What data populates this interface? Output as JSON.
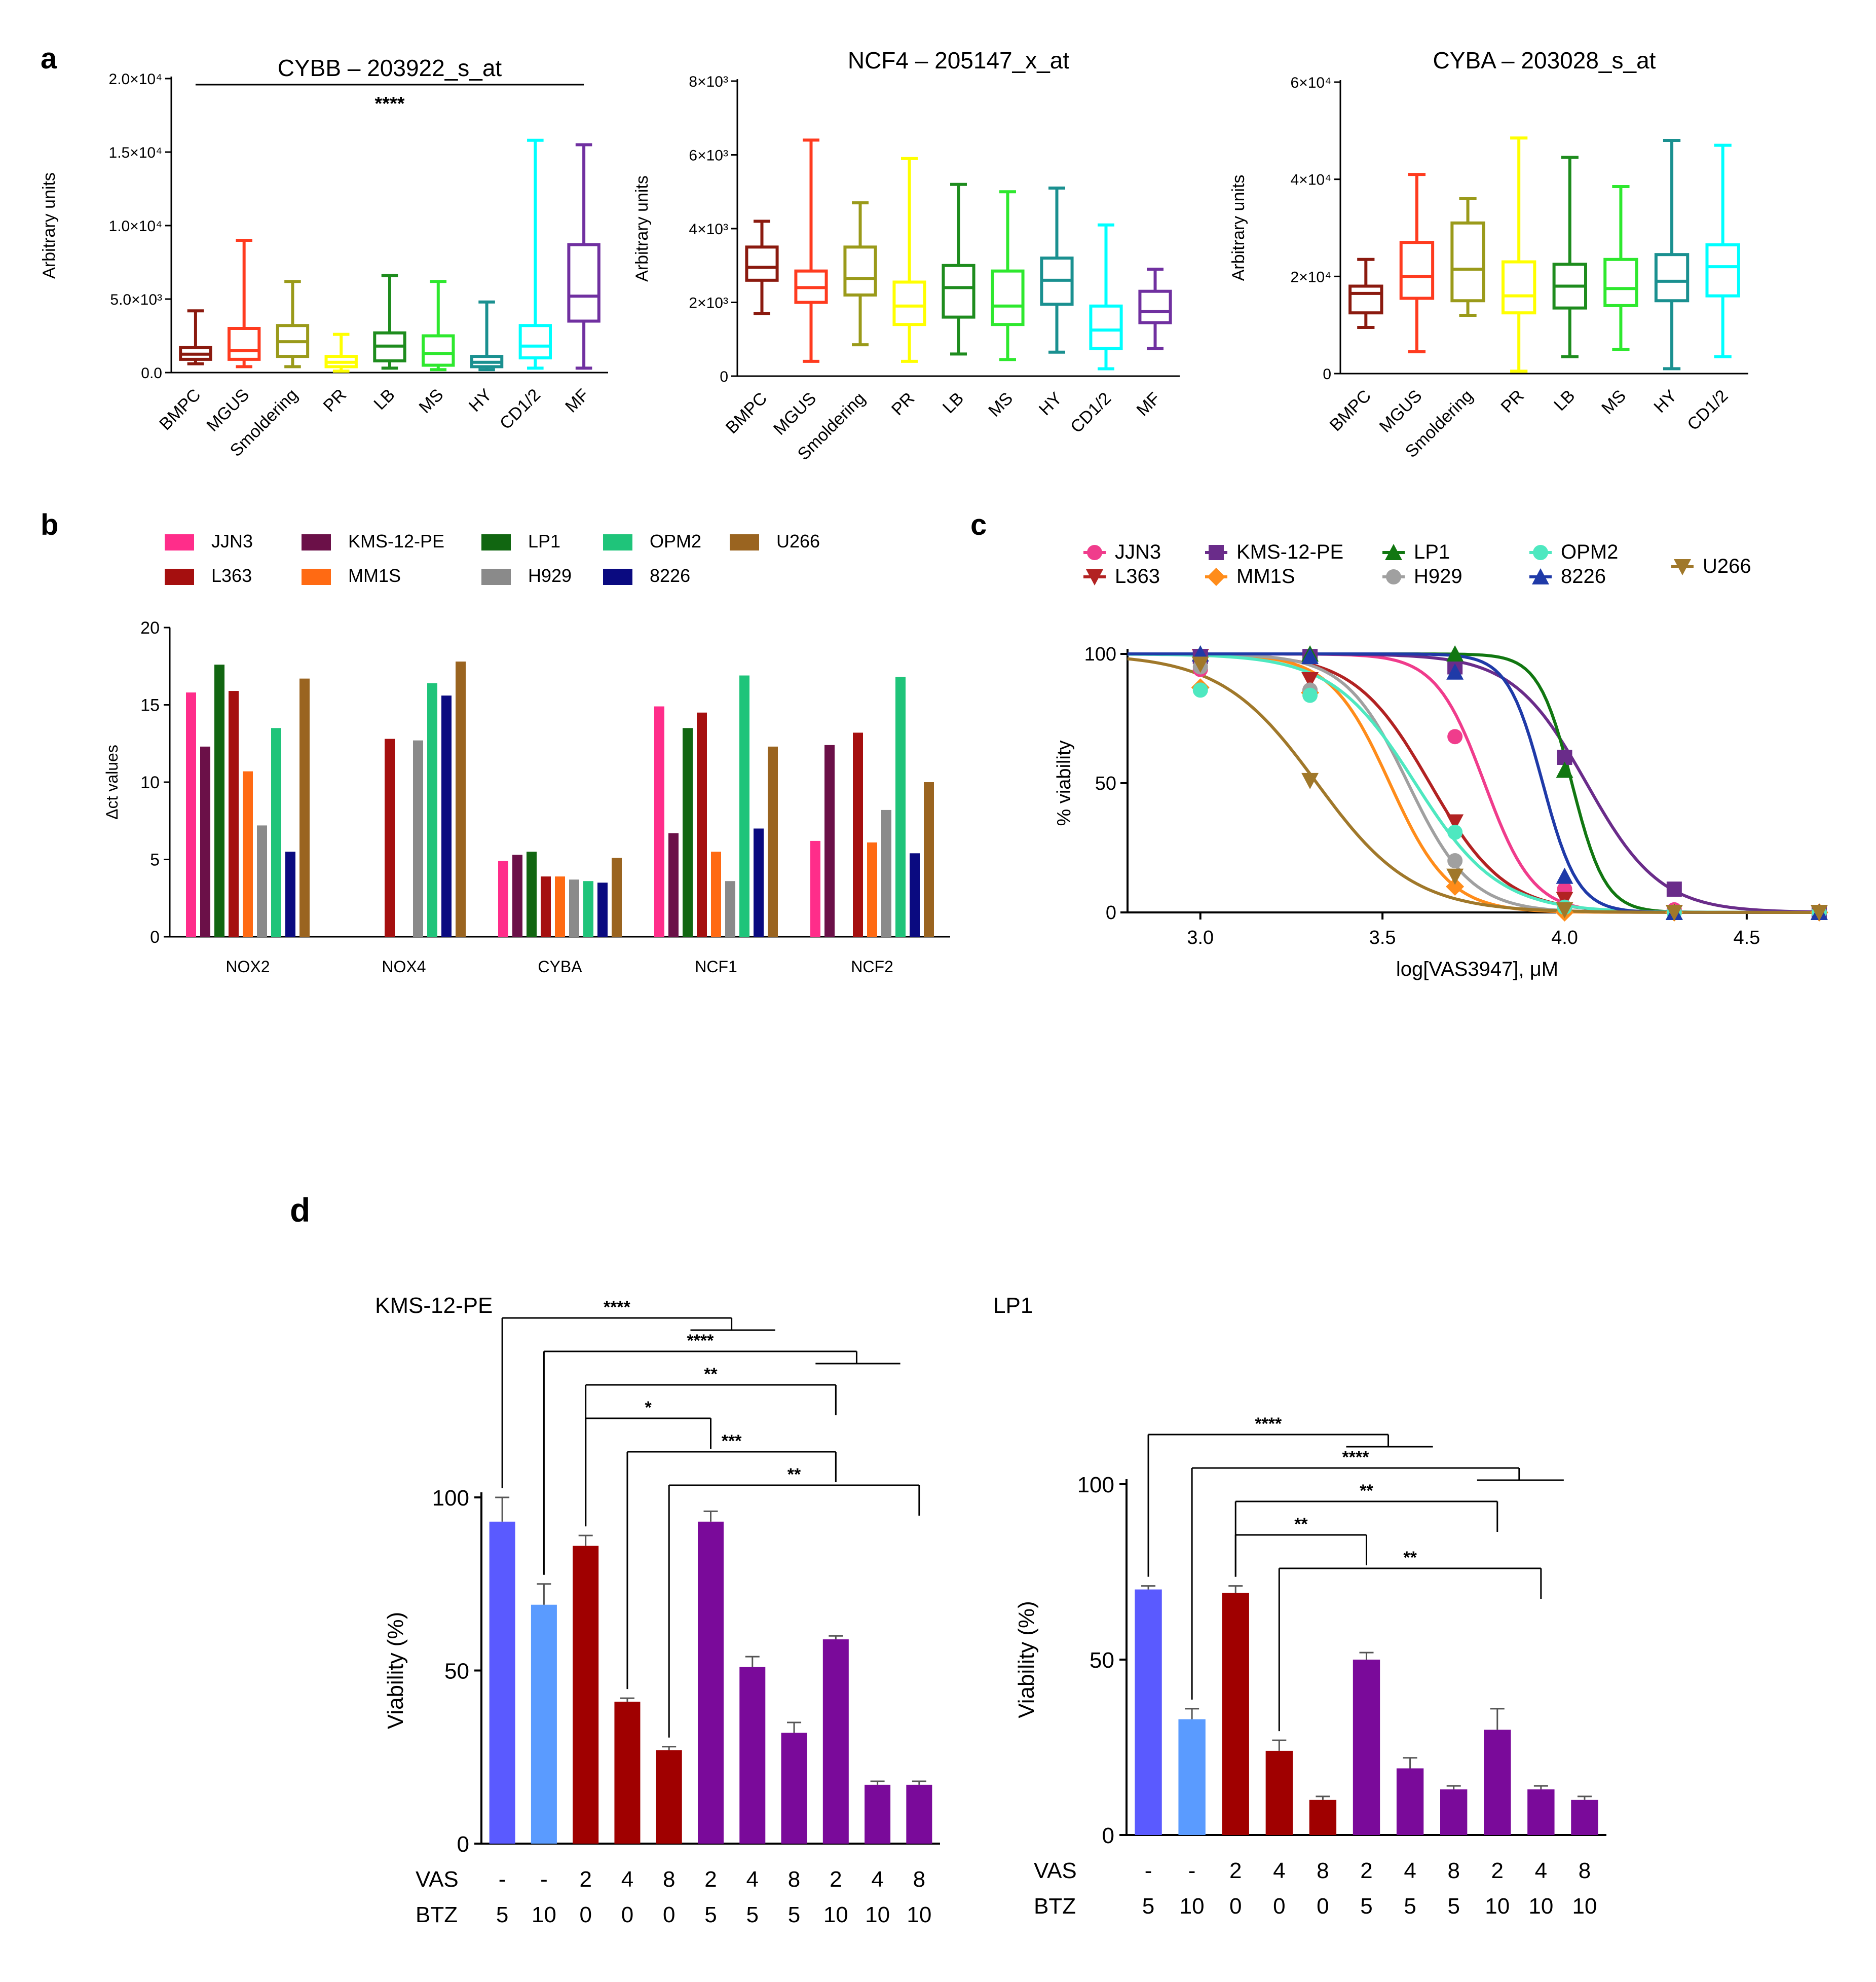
{
  "figure": {
    "panel_labels": {
      "a": "a",
      "b": "b",
      "c": "c",
      "d": "d"
    }
  },
  "chart_data": [
    {
      "panel": "a",
      "type": "box",
      "title": "CYBB – 203922_s_at",
      "ylabel": "Arbitrary units",
      "ylim": [
        0,
        20000
      ],
      "yticks": [
        "0.0",
        "5.0×10³",
        "1.0×10⁴",
        "1.5×10⁴",
        "2.0×10⁴"
      ],
      "ytick_values": [
        0,
        5000,
        10000,
        15000,
        20000
      ],
      "significance": "****",
      "categories": [
        "BMPC",
        "MGUS",
        "Smoldering",
        "PR",
        "LB",
        "MS",
        "HY",
        "CD1/2",
        "MF"
      ],
      "colors": [
        "#8b1a0f",
        "#ff3b1f",
        "#9a9a1a",
        "#ffff00",
        "#1e8c1e",
        "#2ee82e",
        "#1a9090",
        "#00ffff",
        "#7030a0"
      ],
      "boxes": [
        {
          "min": 600,
          "q1": 900,
          "median": 1250,
          "q3": 1700,
          "max": 4200
        },
        {
          "min": 400,
          "q1": 900,
          "median": 1500,
          "q3": 3000,
          "max": 9000
        },
        {
          "min": 400,
          "q1": 1100,
          "median": 2100,
          "q3": 3200,
          "max": 6200
        },
        {
          "min": 100,
          "q1": 400,
          "median": 700,
          "q3": 1100,
          "max": 2600
        },
        {
          "min": 300,
          "q1": 800,
          "median": 1800,
          "q3": 2700,
          "max": 6600
        },
        {
          "min": 200,
          "q1": 500,
          "median": 1300,
          "q3": 2500,
          "max": 6200
        },
        {
          "min": 200,
          "q1": 400,
          "median": 700,
          "q3": 1100,
          "max": 4800
        },
        {
          "min": 300,
          "q1": 1000,
          "median": 1800,
          "q3": 3200,
          "max": 15800
        },
        {
          "min": 300,
          "q1": 3500,
          "median": 5200,
          "q3": 8700,
          "max": 15500
        }
      ]
    },
    {
      "panel": "a",
      "type": "box",
      "title": "NCF4 – 205147_x_at",
      "ylabel": "Arbitrary units",
      "ylim": [
        0,
        8000
      ],
      "yticks": [
        "0",
        "2×10³",
        "4×10³",
        "6×10³",
        "8×10³"
      ],
      "ytick_values": [
        0,
        2000,
        4000,
        6000,
        8000
      ],
      "categories": [
        "BMPC",
        "MGUS",
        "Smoldering",
        "PR",
        "LB",
        "MS",
        "HY",
        "CD1/2",
        "MF"
      ],
      "colors": [
        "#8b1a0f",
        "#ff3b1f",
        "#9a9a1a",
        "#ffff00",
        "#1e8c1e",
        "#2ee82e",
        "#1a9090",
        "#00ffff",
        "#7030a0"
      ],
      "boxes": [
        {
          "min": 1700,
          "q1": 2600,
          "median": 2950,
          "q3": 3500,
          "max": 4200
        },
        {
          "min": 400,
          "q1": 2000,
          "median": 2400,
          "q3": 2850,
          "max": 6400
        },
        {
          "min": 850,
          "q1": 2200,
          "median": 2650,
          "q3": 3500,
          "max": 4700
        },
        {
          "min": 400,
          "q1": 1400,
          "median": 1900,
          "q3": 2550,
          "max": 5900
        },
        {
          "min": 600,
          "q1": 1600,
          "median": 2400,
          "q3": 3000,
          "max": 5200
        },
        {
          "min": 450,
          "q1": 1400,
          "median": 1900,
          "q3": 2850,
          "max": 5000
        },
        {
          "min": 650,
          "q1": 1950,
          "median": 2600,
          "q3": 3200,
          "max": 5100
        },
        {
          "min": 200,
          "q1": 750,
          "median": 1250,
          "q3": 1900,
          "max": 4100
        },
        {
          "min": 750,
          "q1": 1450,
          "median": 1750,
          "q3": 2300,
          "max": 2900
        }
      ]
    },
    {
      "panel": "a",
      "type": "box",
      "title": "CYBA – 203028_s_at",
      "ylabel": "Arbitrary units",
      "ylim": [
        0,
        60000
      ],
      "yticks": [
        "0",
        "2×10⁴",
        "4×10⁴",
        "6×10⁴"
      ],
      "ytick_values": [
        0,
        20000,
        40000,
        60000
      ],
      "categories": [
        "BMPC",
        "MGUS",
        "Smoldering",
        "PR",
        "LB",
        "MS",
        "HY",
        "CD1/2"
      ],
      "colors": [
        "#8b1a0f",
        "#ff3b1f",
        "#9a9a1a",
        "#ffff00",
        "#1e8c1e",
        "#2ee82e",
        "#1a9090",
        "#00ffff"
      ],
      "boxes": [
        {
          "min": 9500,
          "q1": 12500,
          "median": 16500,
          "q3": 18000,
          "max": 23500
        },
        {
          "min": 4500,
          "q1": 15500,
          "median": 20000,
          "q3": 27000,
          "max": 41000
        },
        {
          "min": 12000,
          "q1": 15000,
          "median": 21500,
          "q3": 31000,
          "max": 36000
        },
        {
          "min": 500,
          "q1": 12500,
          "median": 16000,
          "q3": 23000,
          "max": 48500
        },
        {
          "min": 3500,
          "q1": 13500,
          "median": 18000,
          "q3": 22500,
          "max": 44500
        },
        {
          "min": 5000,
          "q1": 14000,
          "median": 17500,
          "q3": 23500,
          "max": 38500
        },
        {
          "min": 1000,
          "q1": 15000,
          "median": 19000,
          "q3": 24500,
          "max": 48000
        },
        {
          "min": 3500,
          "q1": 16000,
          "median": 22000,
          "q3": 26500,
          "max": 47000
        }
      ]
    },
    {
      "panel": "b",
      "type": "bar",
      "ylabel": "Δct values",
      "ylim": [
        0,
        20
      ],
      "yticks": [
        "0",
        "5",
        "10",
        "15",
        "20"
      ],
      "ytick_values": [
        0,
        5,
        10,
        15,
        20
      ],
      "categories": [
        "NOX2",
        "NOX4",
        "CYBA",
        "NCF1",
        "NCF2"
      ],
      "series": [
        {
          "name": "JJN3",
          "color": "#ff2d8a",
          "values": [
            15.8,
            null,
            4.9,
            14.9,
            6.2
          ]
        },
        {
          "name": "KMS-12-PE",
          "color": "#6b1048",
          "values": [
            12.3,
            null,
            5.3,
            6.7,
            12.4
          ]
        },
        {
          "name": "LP1",
          "color": "#116611",
          "values": [
            17.6,
            null,
            5.5,
            13.5,
            null
          ]
        },
        {
          "name": "L363",
          "color": "#a50f0f",
          "values": [
            15.9,
            12.8,
            3.9,
            14.5,
            13.2
          ]
        },
        {
          "name": "MM1S",
          "color": "#ff6a13",
          "values": [
            10.7,
            null,
            3.9,
            5.5,
            6.1
          ]
        },
        {
          "name": "H929",
          "color": "#8a8a8a",
          "values": [
            7.2,
            12.7,
            3.7,
            3.6,
            8.2
          ]
        },
        {
          "name": "OPM2",
          "color": "#1fc47a",
          "values": [
            13.5,
            16.4,
            3.6,
            16.9,
            16.8
          ]
        },
        {
          "name": "8226",
          "color": "#0a0a80",
          "values": [
            5.5,
            15.6,
            3.5,
            7.0,
            5.4
          ]
        },
        {
          "name": "U266",
          "color": "#9a6420",
          "values": [
            16.7,
            17.8,
            5.1,
            12.3,
            10.0
          ]
        }
      ]
    },
    {
      "panel": "c",
      "type": "line",
      "xlabel": "log[VAS3947], μM",
      "ylabel": "% viability",
      "xlim": [
        2.8,
        4.72
      ],
      "ylim": [
        0,
        100
      ],
      "xticks": [
        "3.0",
        "3.5",
        "4.0",
        "4.5"
      ],
      "xtick_values": [
        3.0,
        3.5,
        4.0,
        4.5
      ],
      "yticks": [
        "0",
        "50",
        "100"
      ],
      "ytick_values": [
        0,
        50,
        100
      ],
      "x_points": [
        3.0,
        3.301,
        3.699,
        4.0,
        4.301,
        4.699
      ],
      "series": [
        {
          "name": "JJN3",
          "marker": "circle",
          "color": "#f03c8c",
          "ic50": 3.78,
          "hill": 6.5,
          "values": [
            94,
            86,
            68,
            9,
            1,
            0
          ]
        },
        {
          "name": "L363",
          "marker": "tri-down",
          "color": "#b22222",
          "ic50": 3.63,
          "hill": 4.2,
          "values": [
            99,
            90,
            35,
            5,
            0,
            0
          ]
        },
        {
          "name": "KMS-12-PE",
          "marker": "square",
          "color": "#6a2c8a",
          "ic50": 4.06,
          "hill": 4.3,
          "values": [
            99,
            99,
            95,
            60,
            9,
            0
          ]
        },
        {
          "name": "MM1S",
          "marker": "diamond",
          "color": "#ff8c1a",
          "ic50": 3.52,
          "hill": 5.3,
          "values": [
            87,
            85,
            10,
            0,
            0,
            0
          ]
        },
        {
          "name": "LP1",
          "marker": "tri-up",
          "color": "#117711",
          "ic50": 4.02,
          "hill": 9.5,
          "values": [
            100,
            100,
            100,
            55,
            0,
            0
          ]
        },
        {
          "name": "H929",
          "marker": "circle",
          "color": "#a0a0a0",
          "ic50": 3.57,
          "hill": 5.0,
          "values": [
            95,
            86,
            20,
            2,
            0,
            0
          ]
        },
        {
          "name": "OPM2",
          "marker": "circle",
          "color": "#4ee8c0",
          "ic50": 3.59,
          "hill": 3.8,
          "values": [
            86,
            84,
            31,
            2,
            0,
            0
          ]
        },
        {
          "name": "8226",
          "marker": "tri-up",
          "color": "#1f3aa8",
          "ic50": 3.94,
          "hill": 9.0,
          "values": [
            100,
            99,
            93,
            14,
            0,
            0
          ]
        },
        {
          "name": "U266",
          "marker": "tri-down",
          "color": "#a0782a",
          "ic50": 3.32,
          "hill": 3.3,
          "values": [
            96,
            51,
            14,
            1,
            0,
            0
          ]
        }
      ]
    },
    {
      "panel": "d",
      "type": "bar",
      "title": "KMS-12-PE",
      "ylabel": "Viability (%)",
      "ylim": [
        0,
        100
      ],
      "yticks": [
        "0",
        "50",
        "100"
      ],
      "ytick_values": [
        0,
        50,
        100
      ],
      "row_labels": [
        "VAS",
        "BTZ"
      ],
      "vas": [
        "-",
        "-",
        "2",
        "4",
        "8",
        "2",
        "4",
        "8",
        "2",
        "4",
        "8"
      ],
      "btz": [
        "5",
        "10",
        "0",
        "0",
        "0",
        "5",
        "5",
        "5",
        "10",
        "10",
        "10"
      ],
      "values": [
        93,
        69,
        86,
        41,
        27,
        93,
        51,
        32,
        59,
        17,
        17
      ],
      "errors": [
        7,
        6,
        3,
        1,
        1,
        3,
        3,
        3,
        1,
        1,
        1
      ],
      "colors": [
        "#5a5aff",
        "#5a9bff",
        "#a00000",
        "#a00000",
        "#a00000",
        "#7a0a9a",
        "#7a0a9a",
        "#7a0a9a",
        "#7a0a9a",
        "#7a0a9a",
        "#7a0a9a"
      ],
      "significance": [
        {
          "label": "****",
          "from": 0,
          "to": [
            5,
            6
          ],
          "level": 0
        },
        {
          "label": "****",
          "from": 1,
          "to": [
            8,
            9
          ],
          "level": 1
        },
        {
          "label": "**",
          "from": 2,
          "to": [
            8
          ],
          "level": 2
        },
        {
          "label": "*",
          "from": 2,
          "to": [
            5
          ],
          "level": 3
        },
        {
          "label": "***",
          "from": 3,
          "to": [
            8
          ],
          "level": 4
        },
        {
          "label": "**",
          "from": 4,
          "to": [
            10
          ],
          "level": 5
        }
      ]
    },
    {
      "panel": "d",
      "type": "bar",
      "title": "LP1",
      "ylabel": "Viability (%)",
      "ylim": [
        0,
        100
      ],
      "yticks": [
        "0",
        "50",
        "100"
      ],
      "ytick_values": [
        0,
        50,
        100
      ],
      "row_labels": [
        "VAS",
        "BTZ"
      ],
      "vas": [
        "-",
        "-",
        "2",
        "4",
        "8",
        "2",
        "4",
        "8",
        "2",
        "4",
        "8"
      ],
      "btz": [
        "5",
        "10",
        "0",
        "0",
        "0",
        "5",
        "5",
        "5",
        "10",
        "10",
        "10"
      ],
      "values": [
        70,
        33,
        69,
        24,
        10,
        50,
        19,
        13,
        30,
        13,
        10
      ],
      "errors": [
        1,
        3,
        2,
        3,
        1,
        2,
        3,
        1,
        6,
        1,
        1
      ],
      "colors": [
        "#5a5aff",
        "#5a9bff",
        "#a00000",
        "#a00000",
        "#a00000",
        "#7a0a9a",
        "#7a0a9a",
        "#7a0a9a",
        "#7a0a9a",
        "#7a0a9a",
        "#7a0a9a"
      ],
      "significance": [
        {
          "label": "****",
          "from": 0,
          "to": [
            5,
            6
          ],
          "level": 0
        },
        {
          "label": "****",
          "from": 1,
          "to": [
            8,
            9
          ],
          "level": 1
        },
        {
          "label": "**",
          "from": 2,
          "to": [
            8
          ],
          "level": 2
        },
        {
          "label": "**",
          "from": 2,
          "to": [
            5
          ],
          "level": 3
        },
        {
          "label": "**",
          "from": 3,
          "to": [
            9
          ],
          "level": 4
        }
      ]
    }
  ]
}
